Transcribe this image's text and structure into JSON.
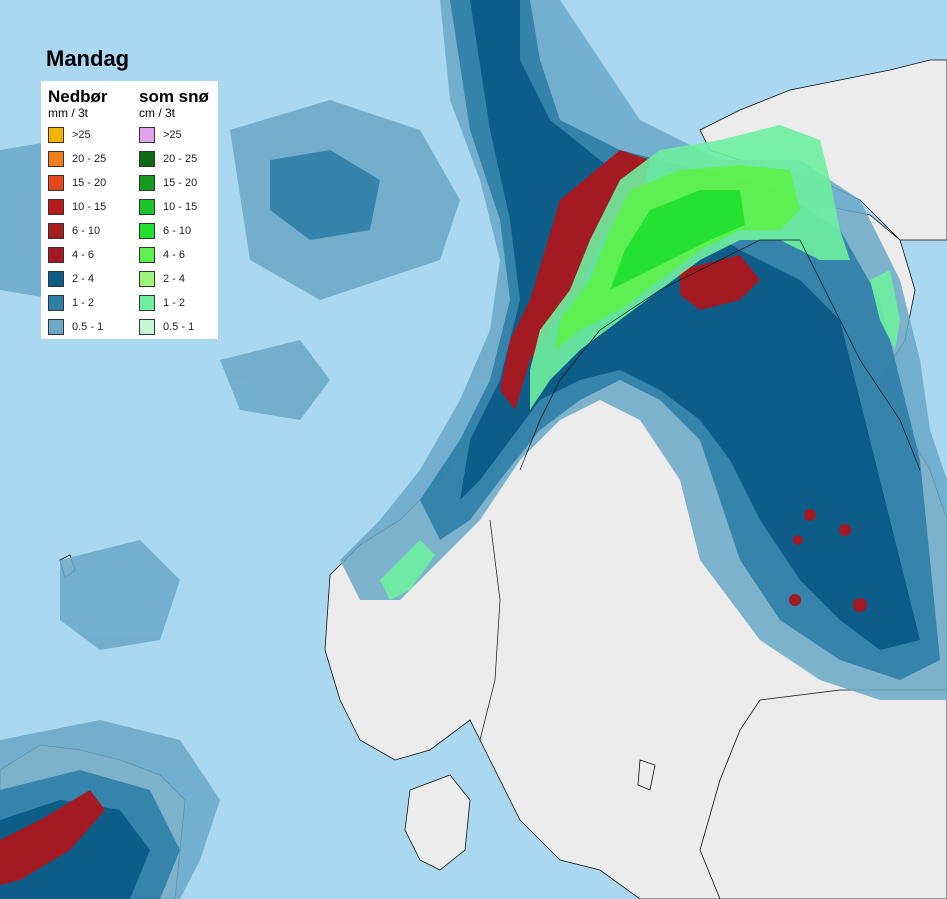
{
  "day_label": "Mandag",
  "legend": {
    "rain": {
      "title": "Nedbør",
      "unit": "mm / 3t",
      "items": [
        {
          "label": ">25",
          "color": "#f7b500"
        },
        {
          "label": "20 - 25",
          "color": "#f07f1c"
        },
        {
          "label": "15 - 20",
          "color": "#e5461c"
        },
        {
          "label": "10 - 15",
          "color": "#b51919"
        },
        {
          "label": "6 - 10",
          "color": "#a61c1c"
        },
        {
          "label": "4 - 6",
          "color": "#a31a22"
        },
        {
          "label": "2 - 4",
          "color": "#0c5b86"
        },
        {
          "label": "1 - 2",
          "color": "#2f7ea7"
        },
        {
          "label": "0.5 - 1",
          "color": "#6aa8c8"
        }
      ]
    },
    "snow": {
      "title": "som snø",
      "unit": "cm / 3t",
      "items": [
        {
          "label": ">25",
          "color": "#e1a3ee"
        },
        {
          "label": "20 - 25",
          "color": "#0b6b12"
        },
        {
          "label": "15 - 20",
          "color": "#149a1c"
        },
        {
          "label": "10 - 15",
          "color": "#1bc42a"
        },
        {
          "label": "6 - 10",
          "color": "#20e030"
        },
        {
          "label": "4 - 6",
          "color": "#5ef04e"
        },
        {
          "label": "2 - 4",
          "color": "#9ef57c"
        },
        {
          "label": "1 - 2",
          "color": "#6ef0a0"
        },
        {
          "label": "0.5 - 1",
          "color": "#c2f7d2"
        }
      ]
    }
  },
  "colors": {
    "sea": "#a9d8f0",
    "land": "#ececec",
    "coast": "#111111"
  }
}
